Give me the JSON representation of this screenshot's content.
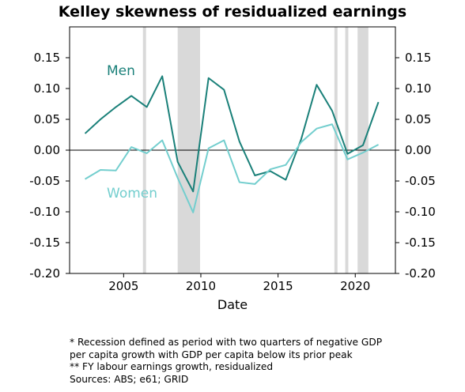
{
  "chart_data": {
    "type": "line",
    "title": "Kelley skewness of residualized earnings",
    "xlabel": "Date",
    "ylabel": "",
    "xlim": [
      2001.5,
      2022.6
    ],
    "ylim": [
      -0.2,
      0.2
    ],
    "x_ticks": [
      "2005",
      "2010",
      "2015",
      "2020"
    ],
    "y_ticks": [
      "0.15",
      "0.10",
      "0.05",
      "0.00",
      "-0.05",
      "-0.10",
      "-0.15",
      "-0.20"
    ],
    "y_ticks_right": [
      "0.15",
      "0.10",
      "0.05",
      "0.00",
      "-0.05",
      "-0.10",
      "-0.15",
      "-0.20"
    ],
    "zero_line": true,
    "grid": false,
    "x": [
      2002.5,
      2003.5,
      2004.5,
      2005.5,
      2006.5,
      2007.5,
      2008.5,
      2009.5,
      2010.5,
      2011.5,
      2012.5,
      2013.5,
      2014.5,
      2015.5,
      2016.5,
      2017.5,
      2018.5,
      2019.5,
      2020.5,
      2021.5
    ],
    "series": [
      {
        "name": "Men",
        "color": "#1a8079",
        "values": [
          0.027,
          0.05,
          0.07,
          0.088,
          0.07,
          0.12,
          -0.019,
          -0.067,
          0.117,
          0.098,
          0.014,
          -0.041,
          -0.034,
          -0.048,
          0.018,
          0.106,
          0.064,
          -0.006,
          0.008,
          0.078
        ]
      },
      {
        "name": "Women",
        "color": "#73cece",
        "values": [
          -0.047,
          -0.032,
          -0.033,
          0.005,
          -0.005,
          0.016,
          -0.045,
          -0.101,
          0.003,
          0.016,
          -0.052,
          -0.055,
          -0.031,
          -0.024,
          0.013,
          0.035,
          0.042,
          -0.015,
          -0.004,
          0.009
        ]
      }
    ],
    "recessions": [
      [
        2006.25,
        2006.45
      ],
      [
        2008.5,
        2009.95
      ],
      [
        2018.65,
        2018.85
      ],
      [
        2019.35,
        2019.55
      ],
      [
        2020.15,
        2020.85
      ]
    ],
    "recession_color": "#d9d9d9",
    "notes": [
      "* Recession defined as period with two quarters of negative GDP",
      "per capita growth with GDP per capita below its prior peak",
      "** FY labour earnings growth, residualized",
      "Sources: ABS; e61; GRID"
    ]
  }
}
